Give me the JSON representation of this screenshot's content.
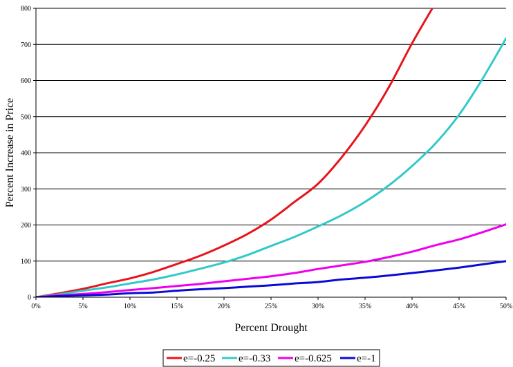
{
  "chart_data": {
    "type": "line",
    "title": "",
    "xlabel": "Percent Drought",
    "ylabel": "Percent Increase in Price",
    "xlim": [
      0,
      50
    ],
    "ylim": [
      0,
      800
    ],
    "x_ticks": [
      0,
      5,
      10,
      15,
      20,
      25,
      30,
      35,
      40,
      45,
      50
    ],
    "x_tick_labels": [
      "0%",
      "5%",
      "10%",
      "15%",
      "20%",
      "25%",
      "30%",
      "35%",
      "40%",
      "45%",
      "50%"
    ],
    "y_ticks": [
      0,
      100,
      200,
      300,
      400,
      500,
      600,
      700,
      800
    ],
    "y_tick_labels": [
      "0",
      "100",
      "200",
      "300",
      "400",
      "500",
      "600",
      "700",
      "800"
    ],
    "grid": "horizontal",
    "legend_position": "bottom",
    "x": [
      0,
      2.5,
      5,
      7.5,
      10,
      12.5,
      15,
      17.5,
      20,
      22.5,
      25,
      27.5,
      30,
      32.5,
      35,
      37.5,
      40,
      42.5,
      45,
      47.5,
      50
    ],
    "series": [
      {
        "name": "e=-0.25",
        "color": "#e8141c",
        "values": [
          0,
          11,
          23,
          38,
          52,
          70,
          92,
          115,
          143,
          175,
          215,
          264,
          314,
          387,
          475,
          580,
          703,
          815,
          null,
          null,
          null
        ]
      },
      {
        "name": "e=-0.33",
        "color": "#33c9c9",
        "values": [
          0,
          8,
          18,
          27,
          38,
          49,
          63,
          79,
          96,
          117,
          142,
          167,
          196,
          227,
          264,
          309,
          363,
          426,
          505,
          605,
          717
        ]
      },
      {
        "name": "e=-0.625",
        "color": "#ee00ee",
        "values": [
          0,
          5,
          9,
          14,
          20,
          25,
          31,
          37,
          44,
          51,
          58,
          67,
          78,
          88,
          98,
          111,
          126,
          144,
          160,
          180,
          202
        ]
      },
      {
        "name": "e=-1",
        "color": "#0a0ad6",
        "values": [
          0,
          3,
          5,
          7,
          11,
          13,
          18,
          22,
          25,
          29,
          33,
          38,
          42,
          49,
          54,
          60,
          67,
          74,
          82,
          91,
          100
        ]
      }
    ]
  }
}
